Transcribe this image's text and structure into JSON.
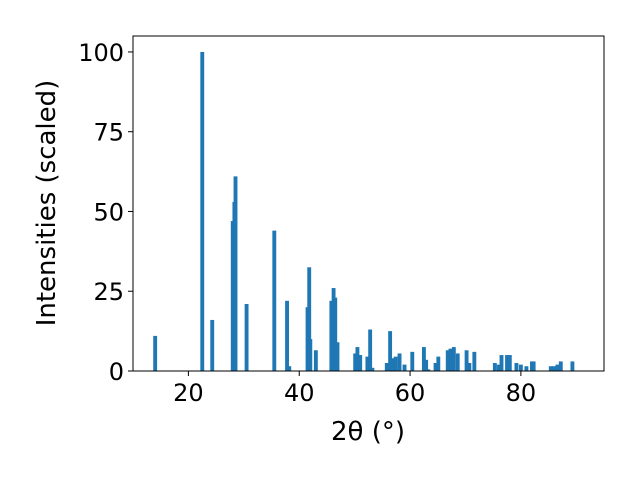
{
  "chart_data": {
    "type": "bar",
    "title": "",
    "xlabel": "2θ (°)",
    "ylabel": "Intensities (scaled)",
    "xlim": [
      10,
      95
    ],
    "ylim": [
      0,
      105
    ],
    "xticks": [
      20,
      40,
      60,
      80
    ],
    "yticks": [
      0,
      25,
      50,
      75,
      100
    ],
    "grid": false,
    "bar_color": "#1f77b4",
    "bar_width": 0.7,
    "series": [
      {
        "x": [
          14.0,
          22.5,
          24.3,
          28.0,
          28.3,
          28.5,
          30.5,
          35.5,
          37.8,
          38.2,
          41.5,
          41.8,
          42.0,
          43.0,
          45.8,
          46.2,
          46.5,
          46.9,
          50.1,
          50.5,
          51.0,
          52.3,
          52.8,
          53.2,
          55.8,
          56.4,
          56.9,
          57.4,
          58.1,
          59.0,
          60.4,
          62.5,
          62.9,
          63.3,
          64.6,
          65.1,
          66.8,
          67.3,
          67.9,
          68.6,
          70.2,
          70.7,
          71.6,
          75.3,
          76.0,
          76.5,
          77.5,
          78.0,
          79.2,
          80.0,
          81.0,
          82.0,
          82.3,
          85.4,
          86.0,
          86.6,
          87.2,
          89.3
        ],
        "values": [
          11.0,
          100.0,
          16.0,
          47.0,
          53.0,
          61.0,
          21.0,
          44.0,
          22.0,
          1.5,
          20.0,
          32.5,
          10.0,
          6.5,
          22.0,
          26.0,
          23.0,
          9.0,
          5.5,
          7.5,
          5.0,
          4.5,
          13.0,
          1.0,
          2.5,
          12.5,
          4.0,
          4.5,
          5.5,
          2.0,
          6.0,
          7.5,
          3.5,
          0.5,
          2.5,
          4.5,
          6.5,
          7.0,
          7.5,
          5.5,
          6.5,
          2.5,
          6.0,
          2.5,
          2.0,
          5.0,
          5.0,
          5.0,
          2.5,
          2.0,
          1.5,
          3.0,
          3.0,
          1.5,
          1.5,
          2.0,
          3.0,
          3.0
        ]
      }
    ]
  }
}
